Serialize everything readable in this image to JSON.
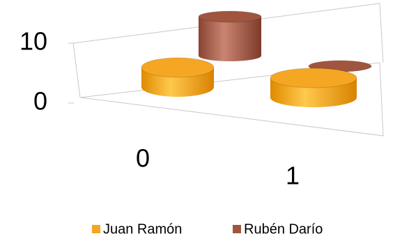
{
  "chart_data": {
    "type": "cylinder3d",
    "categories": [
      "0",
      "1"
    ],
    "series": [
      {
        "name": "Juan Ramón",
        "color": "#f5a623",
        "values": [
          4,
          4
        ]
      },
      {
        "name": "Rubén Darío",
        "color": "#a0553f",
        "values": [
          8,
          0
        ]
      }
    ],
    "ylim": [
      0,
      10
    ],
    "yticks": [
      0,
      10
    ],
    "legend": "bottom"
  }
}
